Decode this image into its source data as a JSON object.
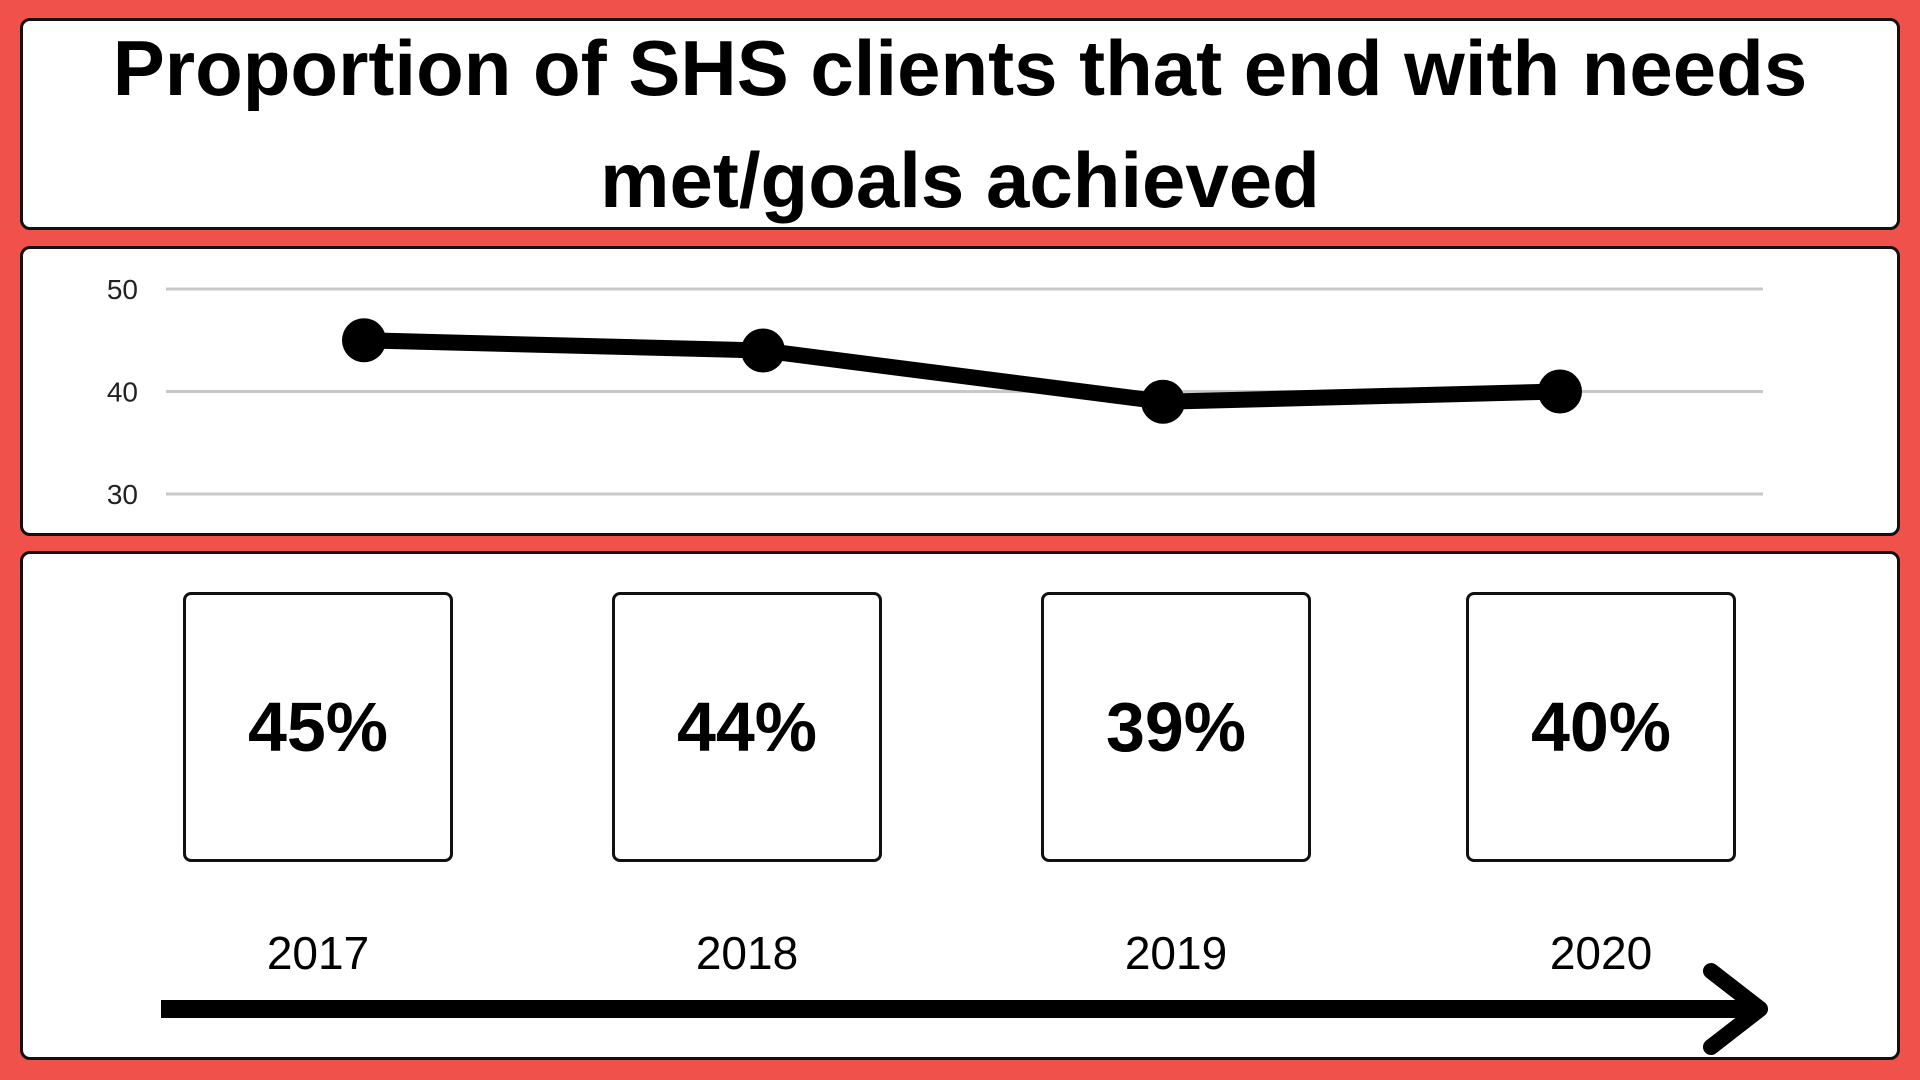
{
  "title": "Proportion of SHS clients that end with needs met/goals achieved",
  "colors": {
    "background": "#f0514a",
    "panel": "#ffffff",
    "ink": "#000000",
    "gridline": "#c8c8c8"
  },
  "chart_data": {
    "type": "line",
    "title": "Proportion of SHS clients that end with needs met/goals achieved",
    "x": [
      "2017",
      "2018",
      "2019",
      "2020"
    ],
    "series": [
      {
        "values": [
          45,
          44,
          39,
          40
        ]
      }
    ],
    "yticks": [
      "50",
      "40",
      "30"
    ],
    "ylim": [
      30,
      50
    ],
    "grid": true,
    "legend": "none",
    "xlabel": "",
    "ylabel": ""
  },
  "cards": [
    {
      "year": "2017",
      "value": "45%"
    },
    {
      "year": "2018",
      "value": "44%"
    },
    {
      "year": "2019",
      "value": "39%"
    },
    {
      "year": "2020",
      "value": "40%"
    }
  ],
  "timeline": {
    "icon": "arrow-right-icon"
  }
}
